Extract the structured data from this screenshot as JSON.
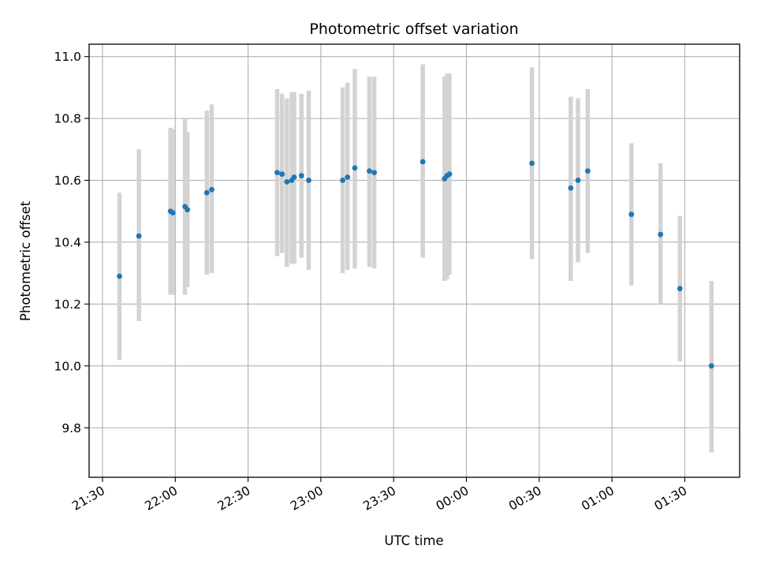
{
  "chart_data": {
    "type": "scatter",
    "title": "Photometric offset variation",
    "xlabel": "UTC time",
    "ylabel": "Photometric offset",
    "xlim": [
      "21:30",
      "01:50"
    ],
    "ylim": [
      9.64,
      11.04
    ],
    "x_ticks": [
      "21:30",
      "22:00",
      "22:30",
      "23:00",
      "23:30",
      "00:00",
      "00:30",
      "01:00",
      "01:30"
    ],
    "y_ticks": [
      "9.8",
      "10.0",
      "10.2",
      "10.4",
      "10.6",
      "10.8",
      "11.0"
    ],
    "grid": true,
    "colors": {
      "point": "#1f77b4",
      "errorbar": "#d3d3d3",
      "grid": "#b0b0b0"
    },
    "series": [
      {
        "points": [
          {
            "x": "21:37",
            "y": 10.29,
            "low": 10.02,
            "high": 10.56
          },
          {
            "x": "21:45",
            "y": 10.42,
            "low": 10.145,
            "high": 10.7
          },
          {
            "x": "21:58",
            "y": 10.5,
            "low": 10.23,
            "high": 10.77
          },
          {
            "x": "21:59",
            "y": 10.495,
            "low": 10.23,
            "high": 10.765
          },
          {
            "x": "22:04",
            "y": 10.515,
            "low": 10.23,
            "high": 10.8
          },
          {
            "x": "22:05",
            "y": 10.505,
            "low": 10.255,
            "high": 10.755
          },
          {
            "x": "22:13",
            "y": 10.56,
            "low": 10.295,
            "high": 10.825
          },
          {
            "x": "22:15",
            "y": 10.57,
            "low": 10.3,
            "high": 10.845
          },
          {
            "x": "22:42",
            "y": 10.625,
            "low": 10.355,
            "high": 10.895
          },
          {
            "x": "22:44",
            "y": 10.62,
            "low": 10.365,
            "high": 10.88
          },
          {
            "x": "22:46",
            "y": 10.595,
            "low": 10.32,
            "high": 10.865
          },
          {
            "x": "22:48",
            "y": 10.6,
            "low": 10.33,
            "high": 10.885
          },
          {
            "x": "22:49",
            "y": 10.61,
            "low": 10.33,
            "high": 10.885
          },
          {
            "x": "22:52",
            "y": 10.615,
            "low": 10.35,
            "high": 10.88
          },
          {
            "x": "22:55",
            "y": 10.6,
            "low": 10.31,
            "high": 10.89
          },
          {
            "x": "23:09",
            "y": 10.6,
            "low": 10.3,
            "high": 10.9
          },
          {
            "x": "23:11",
            "y": 10.61,
            "low": 10.31,
            "high": 10.915
          },
          {
            "x": "23:14",
            "y": 10.64,
            "low": 10.315,
            "high": 10.96
          },
          {
            "x": "23:20",
            "y": 10.63,
            "low": 10.32,
            "high": 10.935
          },
          {
            "x": "23:22",
            "y": 10.625,
            "low": 10.315,
            "high": 10.935
          },
          {
            "x": "23:42",
            "y": 10.66,
            "low": 10.35,
            "high": 10.975
          },
          {
            "x": "23:51",
            "y": 10.605,
            "low": 10.275,
            "high": 10.935
          },
          {
            "x": "23:52",
            "y": 10.615,
            "low": 10.28,
            "high": 10.945
          },
          {
            "x": "23:53",
            "y": 10.62,
            "low": 10.295,
            "high": 10.945
          },
          {
            "x": "00:27",
            "y": 10.655,
            "low": 10.345,
            "high": 10.965
          },
          {
            "x": "00:43",
            "y": 10.575,
            "low": 10.275,
            "high": 10.87
          },
          {
            "x": "00:46",
            "y": 10.6,
            "low": 10.335,
            "high": 10.865
          },
          {
            "x": "00:50",
            "y": 10.63,
            "low": 10.365,
            "high": 10.895
          },
          {
            "x": "01:08",
            "y": 10.49,
            "low": 10.26,
            "high": 10.72
          },
          {
            "x": "01:20",
            "y": 10.425,
            "low": 10.2,
            "high": 10.655
          },
          {
            "x": "01:28",
            "y": 10.25,
            "low": 10.015,
            "high": 10.485
          },
          {
            "x": "01:41",
            "y": 10.0,
            "low": 9.72,
            "high": 10.275
          }
        ]
      }
    ]
  }
}
